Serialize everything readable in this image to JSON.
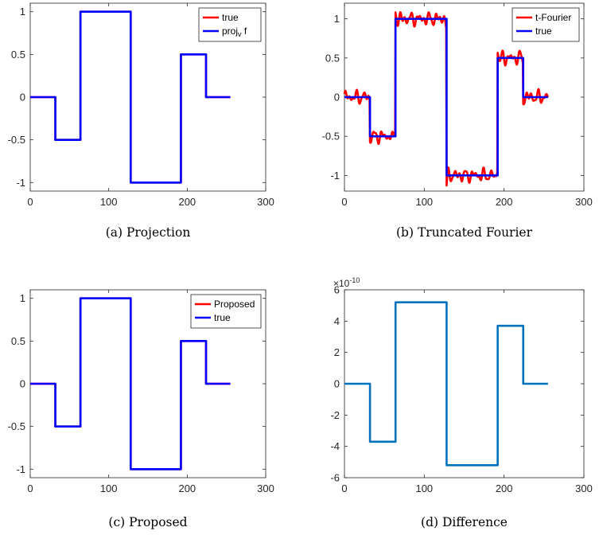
{
  "chart_data": [
    {
      "type": "line",
      "caption": "(a) Projection",
      "xlim": [
        0,
        300
      ],
      "ylim": [
        -1.1,
        1.1
      ],
      "xticks": [
        0,
        100,
        200,
        300
      ],
      "xtick_labels": [
        "0",
        "100",
        "200",
        "300"
      ],
      "yticks": [
        -1,
        -0.5,
        0,
        0.5,
        1
      ],
      "ytick_labels": [
        "-1",
        "-0.5",
        "0",
        "0.5",
        "1"
      ],
      "legend_position": "top-right",
      "grid": false,
      "series": [
        {
          "name": "true",
          "color": "#ff0000",
          "style": "line",
          "x": [
            0,
            32,
            32,
            64,
            64,
            128,
            128,
            192,
            192,
            224,
            224,
            255
          ],
          "y": [
            0,
            0,
            -0.5,
            -0.5,
            1,
            1,
            -1,
            -1,
            0.5,
            0.5,
            0,
            0
          ]
        },
        {
          "name": "proj_v f",
          "color": "#0000ff",
          "style": "line",
          "x": [
            0,
            32,
            32,
            64,
            64,
            128,
            128,
            192,
            192,
            224,
            224,
            255
          ],
          "y": [
            0,
            0,
            -0.5,
            -0.5,
            1,
            1,
            -1,
            -1,
            0.5,
            0.5,
            0,
            0
          ]
        }
      ]
    },
    {
      "type": "line",
      "caption": "(b) Truncated Fourier",
      "xlim": [
        0,
        300
      ],
      "ylim": [
        -1.2,
        1.2
      ],
      "xticks": [
        0,
        100,
        200,
        300
      ],
      "xtick_labels": [
        "0",
        "100",
        "200",
        "300"
      ],
      "yticks": [
        -1,
        -0.5,
        0,
        0.5,
        1
      ],
      "ytick_labels": [
        "-1",
        "-0.5",
        "0",
        "0.5",
        "1"
      ],
      "legend_position": "top-right",
      "grid": false,
      "series": [
        {
          "name": "t-Fourier",
          "color": "#ff0000",
          "style": "fourier",
          "x": [
            0,
            32,
            32,
            64,
            64,
            128,
            128,
            192,
            192,
            224,
            224,
            255
          ],
          "y": [
            0,
            0,
            -0.5,
            -0.5,
            1,
            1,
            -1,
            -1,
            0.5,
            0.5,
            0,
            0
          ]
        },
        {
          "name": "true",
          "color": "#0000ff",
          "style": "line",
          "x": [
            0,
            32,
            32,
            64,
            64,
            128,
            128,
            192,
            192,
            224,
            224,
            255
          ],
          "y": [
            0,
            0,
            -0.5,
            -0.5,
            1,
            1,
            -1,
            -1,
            0.5,
            0.5,
            0,
            0
          ]
        }
      ]
    },
    {
      "type": "line",
      "caption": "(c) Proposed",
      "xlim": [
        0,
        300
      ],
      "ylim": [
        -1.1,
        1.1
      ],
      "xticks": [
        0,
        100,
        200,
        300
      ],
      "xtick_labels": [
        "0",
        "100",
        "200",
        "300"
      ],
      "yticks": [
        -1,
        -0.5,
        0,
        0.5,
        1
      ],
      "ytick_labels": [
        "-1",
        "-0.5",
        "0",
        "0.5",
        "1"
      ],
      "legend_position": "top-right",
      "grid": false,
      "series": [
        {
          "name": "Proposed",
          "color": "#ff0000",
          "style": "line",
          "x": [
            0,
            32,
            32,
            64,
            64,
            128,
            128,
            192,
            192,
            224,
            224,
            255
          ],
          "y": [
            0,
            0,
            -0.5,
            -0.5,
            1,
            1,
            -1,
            -1,
            0.5,
            0.5,
            0,
            0
          ]
        },
        {
          "name": "true",
          "color": "#0000ff",
          "style": "line",
          "x": [
            0,
            32,
            32,
            64,
            64,
            128,
            128,
            192,
            192,
            224,
            224,
            255
          ],
          "y": [
            0,
            0,
            -0.5,
            -0.5,
            1,
            1,
            -1,
            -1,
            0.5,
            0.5,
            0,
            0
          ]
        }
      ]
    },
    {
      "type": "line",
      "caption": "(d) Difference",
      "xlim": [
        0,
        300
      ],
      "ylim": [
        -6,
        6
      ],
      "xticks": [
        0,
        100,
        200,
        300
      ],
      "xtick_labels": [
        "0",
        "100",
        "200",
        "300"
      ],
      "yticks": [
        -6,
        -4,
        -2,
        0,
        2,
        4,
        6
      ],
      "ytick_labels": [
        "-6",
        "-4",
        "-2",
        "0",
        "2",
        "4",
        "6"
      ],
      "y_exponent_base": "×10",
      "y_exponent": "-10",
      "legend_position": "none",
      "grid": false,
      "series": [
        {
          "color": "#0072bd",
          "style": "line",
          "x": [
            0,
            32,
            32,
            64,
            64,
            128,
            128,
            192,
            192,
            224,
            224,
            255
          ],
          "y": [
            0,
            0,
            -3.7,
            -3.7,
            5.2,
            5.2,
            -5.2,
            -5.2,
            3.7,
            3.7,
            0,
            0
          ]
        }
      ]
    }
  ]
}
